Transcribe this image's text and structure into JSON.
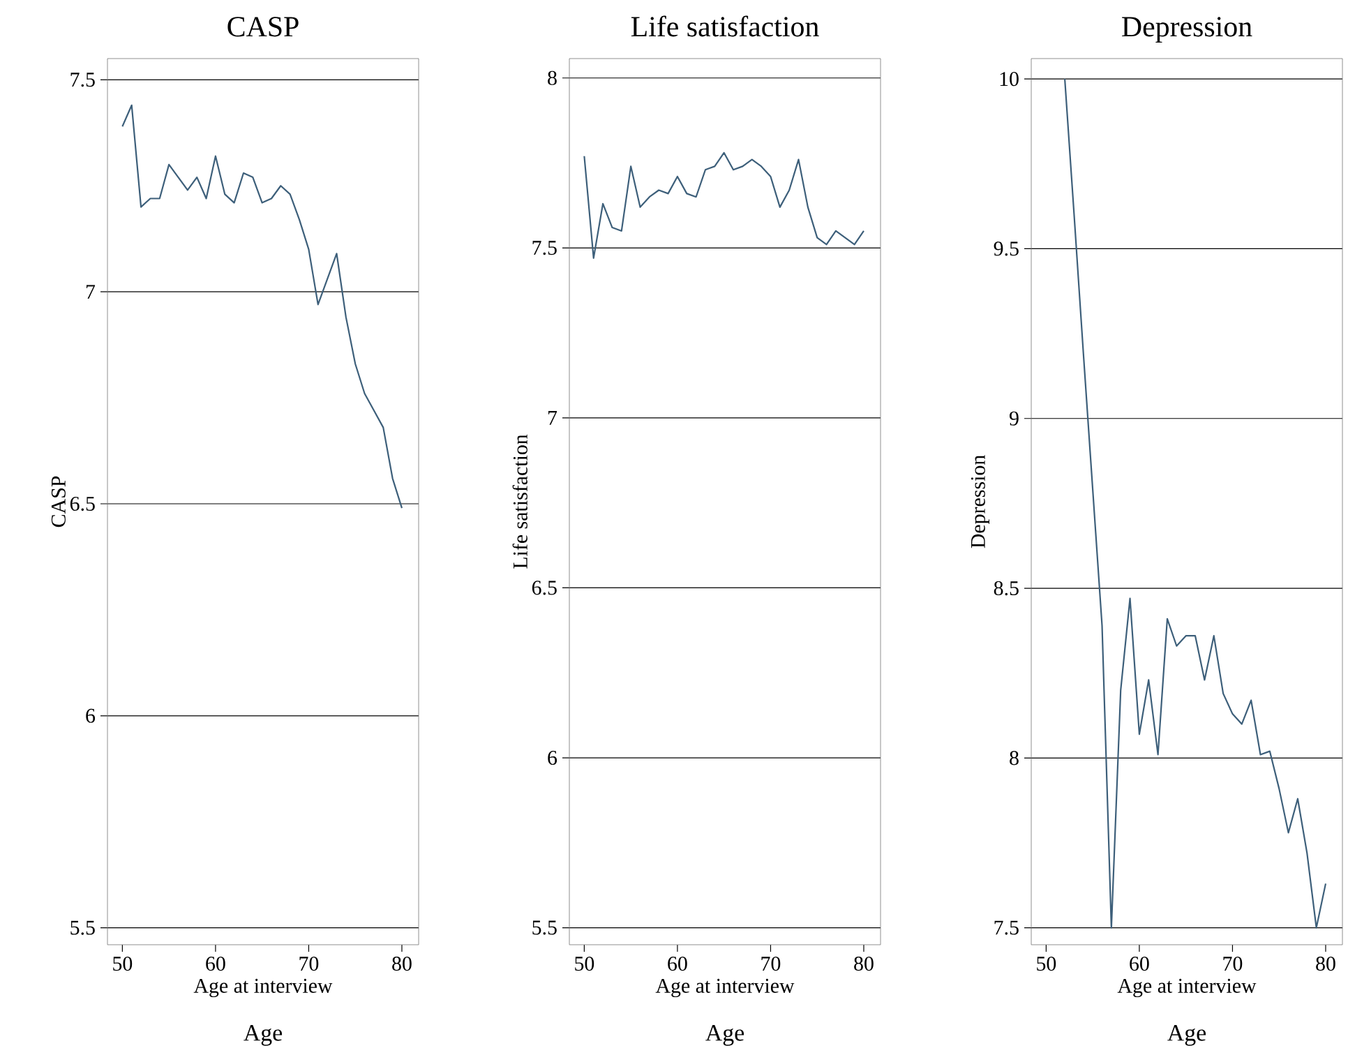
{
  "chart_data": [
    {
      "type": "line",
      "title": "CASP",
      "xlabel": "Age at interview",
      "ylabel": "CASP",
      "annotations": [
        "Age"
      ],
      "color": "#3d5f7a",
      "grid": "y",
      "xlim": [
        48.4,
        81.8
      ],
      "ylim": [
        5.46,
        7.55
      ],
      "xticks": [
        50,
        60,
        70,
        80
      ],
      "yticks": [
        5.5,
        6,
        6.5,
        7,
        7.5
      ],
      "x": [
        50,
        51,
        52,
        53,
        54,
        55,
        56,
        57,
        58,
        59,
        60,
        61,
        62,
        63,
        64,
        65,
        66,
        67,
        68,
        69,
        70,
        71,
        72,
        73,
        74,
        75,
        76,
        77,
        78,
        79,
        80
      ],
      "values": [
        7.39,
        7.44,
        7.2,
        7.22,
        7.22,
        7.3,
        7.27,
        7.24,
        7.27,
        7.22,
        7.32,
        7.23,
        7.21,
        7.28,
        7.27,
        7.21,
        7.22,
        7.25,
        7.23,
        7.17,
        7.1,
        6.97,
        7.03,
        7.09,
        6.94,
        6.83,
        6.76,
        6.72,
        6.68,
        6.56,
        6.49
      ]
    },
    {
      "type": "line",
      "title": "Life satisfaction",
      "xlabel": "Age at interview",
      "ylabel": "Life satisfaction",
      "annotations": [
        "Age"
      ],
      "color": "#3d5f7a",
      "grid": "y",
      "xlim": [
        48.4,
        81.8
      ],
      "ylim": [
        5.45,
        8.057
      ],
      "xticks": [
        50,
        60,
        70,
        80
      ],
      "yticks": [
        5.5,
        6,
        6.5,
        7,
        7.5,
        8
      ],
      "x": [
        50,
        51,
        52,
        53,
        54,
        55,
        56,
        57,
        58,
        59,
        60,
        61,
        62,
        63,
        64,
        65,
        66,
        67,
        68,
        69,
        70,
        71,
        72,
        73,
        74,
        75,
        76,
        77,
        78,
        79,
        80
      ],
      "values": [
        7.77,
        7.47,
        7.63,
        7.56,
        7.55,
        7.74,
        7.62,
        7.65,
        7.67,
        7.66,
        7.71,
        7.66,
        7.65,
        7.73,
        7.74,
        7.78,
        7.73,
        7.74,
        7.76,
        7.74,
        7.71,
        7.62,
        7.67,
        7.76,
        7.62,
        7.53,
        7.51,
        7.55,
        7.53,
        7.51,
        7.55
      ]
    },
    {
      "type": "line",
      "title": "Depression",
      "xlabel": "Age at interview",
      "ylabel": "Depression",
      "annotations": [
        "Age"
      ],
      "color": "#3d5f7a",
      "grid": "y",
      "xlim": [
        48.4,
        81.8
      ],
      "ylim": [
        7.45,
        10.06
      ],
      "xticks": [
        50,
        60,
        70,
        80
      ],
      "yticks": [
        7.5,
        8,
        8.5,
        9,
        9.5,
        10
      ],
      "x": [
        52,
        53,
        54,
        55,
        56,
        57,
        58,
        59,
        60,
        61,
        62,
        63,
        64,
        65,
        66,
        67,
        68,
        69,
        70,
        71,
        72,
        73,
        74,
        75,
        76,
        77,
        78,
        79,
        80
      ],
      "values": [
        10.0,
        9.6,
        9.19,
        8.79,
        8.39,
        7.5,
        8.2,
        8.47,
        8.07,
        8.23,
        8.01,
        8.41,
        8.33,
        8.36,
        8.36,
        8.23,
        8.36,
        8.19,
        8.13,
        8.1,
        8.17,
        8.01,
        8.02,
        7.91,
        7.78,
        7.88,
        7.72,
        7.5,
        7.63
      ]
    }
  ]
}
